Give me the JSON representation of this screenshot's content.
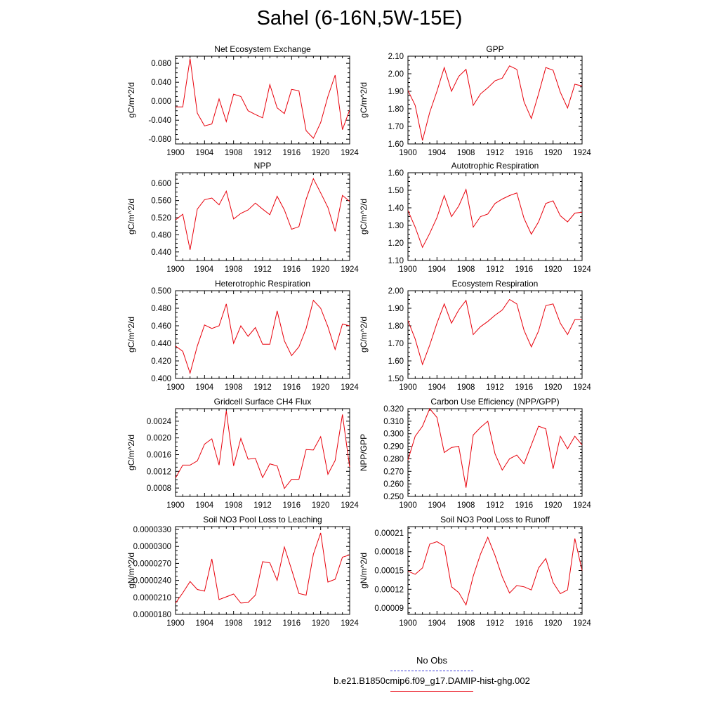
{
  "page": {
    "title": "Sahel (6-16N,5W-15E)"
  },
  "legend": {
    "items": [
      {
        "label": "No Obs",
        "color": "#3b3bd9",
        "style": "dashed"
      },
      {
        "label": "b.e21.B1850cmip6.f09_g17.DAMIP-hist-ghg.002",
        "color": "#e8000b",
        "style": "solid"
      }
    ]
  },
  "chart_data": [
    {
      "type": "line",
      "title": "Net Ecosystem Exchange",
      "ylabel": "gC/m^2/d",
      "xlim": [
        1900,
        1924
      ],
      "ylim": [
        -0.09,
        0.095
      ],
      "xticks": [
        "1900",
        "1904",
        "1908",
        "1912",
        "1916",
        "1920",
        "1924"
      ],
      "yticks": [
        "-0.080",
        "-0.040",
        "0.000",
        "0.040",
        "0.080"
      ],
      "x": [
        1900,
        1901,
        1902,
        1903,
        1904,
        1905,
        1906,
        1907,
        1908,
        1909,
        1910,
        1911,
        1912,
        1913,
        1914,
        1915,
        1916,
        1917,
        1918,
        1919,
        1920,
        1921,
        1922,
        1923,
        1924
      ],
      "series": [
        {
          "color": "#e8000b",
          "values": [
            -0.012,
            -0.012,
            0.09,
            -0.025,
            -0.052,
            -0.048,
            0.005,
            -0.043,
            0.015,
            0.01,
            -0.02,
            -0.028,
            -0.035,
            0.035,
            -0.014,
            -0.026,
            0.025,
            0.022,
            -0.062,
            -0.078,
            -0.045,
            0.01,
            0.055,
            -0.06,
            -0.018
          ]
        }
      ]
    },
    {
      "type": "line",
      "title": "GPP",
      "ylabel": "gC/m^2/d",
      "xlim": [
        1900,
        1924
      ],
      "ylim": [
        1.6,
        2.1
      ],
      "xticks": [
        "1900",
        "1904",
        "1908",
        "1912",
        "1916",
        "1920",
        "1924"
      ],
      "yticks": [
        "1.60",
        "1.70",
        "1.80",
        "1.90",
        "2.00",
        "2.10"
      ],
      "x": [
        1900,
        1901,
        1902,
        1903,
        1904,
        1905,
        1906,
        1907,
        1908,
        1909,
        1910,
        1911,
        1912,
        1913,
        1914,
        1915,
        1916,
        1917,
        1918,
        1919,
        1920,
        1921,
        1922,
        1923,
        1924
      ],
      "series": [
        {
          "color": "#e8000b",
          "values": [
            1.905,
            1.82,
            1.62,
            1.78,
            1.9,
            2.035,
            1.9,
            1.985,
            2.025,
            1.82,
            1.885,
            1.92,
            1.96,
            1.975,
            2.045,
            2.025,
            1.84,
            1.745,
            1.885,
            2.035,
            2.02,
            1.895,
            1.805,
            1.94,
            1.93
          ]
        }
      ]
    },
    {
      "type": "line",
      "title": "NPP",
      "ylabel": "gC/m^2/d",
      "xlim": [
        1900,
        1924
      ],
      "ylim": [
        0.42,
        0.625
      ],
      "xticks": [
        "1900",
        "1904",
        "1908",
        "1912",
        "1916",
        "1920",
        "1924"
      ],
      "yticks": [
        "0.440",
        "0.480",
        "0.520",
        "0.560",
        "0.600"
      ],
      "x": [
        1900,
        1901,
        1902,
        1903,
        1904,
        1905,
        1906,
        1907,
        1908,
        1909,
        1910,
        1911,
        1912,
        1913,
        1914,
        1915,
        1916,
        1917,
        1918,
        1919,
        1920,
        1921,
        1922,
        1923,
        1924
      ],
      "series": [
        {
          "color": "#e8000b",
          "values": [
            0.515,
            0.528,
            0.445,
            0.54,
            0.562,
            0.566,
            0.55,
            0.582,
            0.517,
            0.53,
            0.538,
            0.554,
            0.54,
            0.527,
            0.57,
            0.538,
            0.493,
            0.499,
            0.563,
            0.611,
            0.578,
            0.544,
            0.488,
            0.572,
            0.558
          ]
        }
      ]
    },
    {
      "type": "line",
      "title": "Autotrophic Respiration",
      "ylabel": "gC/m^2/d",
      "xlim": [
        1900,
        1924
      ],
      "ylim": [
        1.1,
        1.6
      ],
      "xticks": [
        "1900",
        "1904",
        "1908",
        "1912",
        "1916",
        "1920",
        "1924"
      ],
      "yticks": [
        "1.10",
        "1.20",
        "1.30",
        "1.40",
        "1.50",
        "1.60"
      ],
      "x": [
        1900,
        1901,
        1902,
        1903,
        1904,
        1905,
        1906,
        1907,
        1908,
        1909,
        1910,
        1911,
        1912,
        1913,
        1914,
        1915,
        1916,
        1917,
        1918,
        1919,
        1920,
        1921,
        1922,
        1923,
        1924
      ],
      "series": [
        {
          "color": "#e8000b",
          "values": [
            1.385,
            1.29,
            1.175,
            1.255,
            1.345,
            1.47,
            1.35,
            1.41,
            1.505,
            1.29,
            1.35,
            1.365,
            1.425,
            1.45,
            1.47,
            1.485,
            1.34,
            1.25,
            1.32,
            1.425,
            1.44,
            1.355,
            1.32,
            1.37,
            1.375
          ]
        }
      ]
    },
    {
      "type": "line",
      "title": "Heterotrophic Respiration",
      "ylabel": "gC/m^2/d",
      "xlim": [
        1900,
        1924
      ],
      "ylim": [
        0.4,
        0.5
      ],
      "xticks": [
        "1900",
        "1904",
        "1908",
        "1912",
        "1916",
        "1920",
        "1924"
      ],
      "yticks": [
        "0.400",
        "0.420",
        "0.440",
        "0.460",
        "0.480",
        "0.500"
      ],
      "x": [
        1900,
        1901,
        1902,
        1903,
        1904,
        1905,
        1906,
        1907,
        1908,
        1909,
        1910,
        1911,
        1912,
        1913,
        1914,
        1915,
        1916,
        1917,
        1918,
        1919,
        1920,
        1921,
        1922,
        1923,
        1924
      ],
      "series": [
        {
          "color": "#e8000b",
          "values": [
            0.437,
            0.431,
            0.406,
            0.437,
            0.461,
            0.457,
            0.46,
            0.485,
            0.44,
            0.46,
            0.448,
            0.458,
            0.439,
            0.439,
            0.477,
            0.443,
            0.426,
            0.436,
            0.457,
            0.489,
            0.48,
            0.459,
            0.433,
            0.462,
            0.46
          ]
        }
      ]
    },
    {
      "type": "line",
      "title": "Ecosystem Respiration",
      "ylabel": "gC/m^2/d",
      "xlim": [
        1900,
        1924
      ],
      "ylim": [
        1.5,
        2.0
      ],
      "xticks": [
        "1900",
        "1904",
        "1908",
        "1912",
        "1916",
        "1920",
        "1924"
      ],
      "yticks": [
        "1.50",
        "1.60",
        "1.70",
        "1.80",
        "1.90",
        "2.00"
      ],
      "x": [
        1900,
        1901,
        1902,
        1903,
        1904,
        1905,
        1906,
        1907,
        1908,
        1909,
        1910,
        1911,
        1912,
        1913,
        1914,
        1915,
        1916,
        1917,
        1918,
        1919,
        1920,
        1921,
        1922,
        1923,
        1924
      ],
      "series": [
        {
          "color": "#e8000b",
          "values": [
            1.83,
            1.725,
            1.58,
            1.69,
            1.815,
            1.925,
            1.815,
            1.89,
            1.945,
            1.75,
            1.795,
            1.825,
            1.86,
            1.89,
            1.95,
            1.925,
            1.775,
            1.68,
            1.77,
            1.915,
            1.925,
            1.815,
            1.75,
            1.835,
            1.835
          ]
        }
      ]
    },
    {
      "type": "line",
      "title": "Gridcell Surface CH4 Flux",
      "ylabel": "gC/m^2/d",
      "xlim": [
        1900,
        1924
      ],
      "ylim": [
        0.0006,
        0.0027
      ],
      "xticks": [
        "1900",
        "1904",
        "1908",
        "1912",
        "1916",
        "1920",
        "1924"
      ],
      "yticks": [
        "0.0008",
        "0.0012",
        "0.0016",
        "0.0020",
        "0.0024"
      ],
      "x": [
        1900,
        1901,
        1902,
        1903,
        1904,
        1905,
        1906,
        1907,
        1908,
        1909,
        1910,
        1911,
        1912,
        1913,
        1914,
        1915,
        1916,
        1917,
        1918,
        1919,
        1920,
        1921,
        1922,
        1923,
        1924
      ],
      "series": [
        {
          "color": "#e8000b",
          "values": [
            0.00104,
            0.00135,
            0.00135,
            0.00145,
            0.00185,
            0.00198,
            0.00135,
            0.00265,
            0.00133,
            0.00199,
            0.00149,
            0.00151,
            0.00105,
            0.00138,
            0.00133,
            0.00079,
            0.00101,
            0.00101,
            0.00172,
            0.00171,
            0.00203,
            0.00113,
            0.00146,
            0.00256,
            0.0013
          ]
        }
      ]
    },
    {
      "type": "line",
      "title": "Carbon Use Efficiency (NPP/GPP)",
      "ylabel": "NPP/GPP",
      "xlim": [
        1900,
        1924
      ],
      "ylim": [
        0.25,
        0.32
      ],
      "xticks": [
        "1900",
        "1904",
        "1908",
        "1912",
        "1916",
        "1920",
        "1924"
      ],
      "yticks": [
        "0.250",
        "0.260",
        "0.270",
        "0.280",
        "0.290",
        "0.300",
        "0.310",
        "0.320"
      ],
      "x": [
        1900,
        1901,
        1902,
        1903,
        1904,
        1905,
        1906,
        1907,
        1908,
        1909,
        1910,
        1911,
        1912,
        1913,
        1914,
        1915,
        1916,
        1917,
        1918,
        1919,
        1920,
        1921,
        1922,
        1923,
        1924
      ],
      "series": [
        {
          "color": "#e8000b",
          "values": [
            0.279,
            0.298,
            0.306,
            0.32,
            0.313,
            0.285,
            0.289,
            0.29,
            0.257,
            0.299,
            0.305,
            0.31,
            0.284,
            0.271,
            0.28,
            0.283,
            0.276,
            0.291,
            0.306,
            0.304,
            0.272,
            0.298,
            0.288,
            0.298,
            0.291
          ]
        }
      ]
    },
    {
      "type": "line",
      "title": "Soil NO3 Pool Loss to Leaching",
      "ylabel": "gN/m^2/d",
      "xlim": [
        1900,
        1924
      ],
      "ylim": [
        1.8e-05,
        3.35e-05
      ],
      "xticks": [
        "1900",
        "1904",
        "1908",
        "1912",
        "1916",
        "1920",
        "1924"
      ],
      "yticks": [
        "0.0000180",
        "0.0000210",
        "0.0000240",
        "0.0000270",
        "0.0000300",
        "0.0000330"
      ],
      "x": [
        1900,
        1901,
        1902,
        1903,
        1904,
        1905,
        1906,
        1907,
        1908,
        1909,
        1910,
        1911,
        1912,
        1913,
        1914,
        1915,
        1916,
        1917,
        1918,
        1919,
        1920,
        1921,
        1922,
        1923,
        1924
      ],
      "series": [
        {
          "color": "#e8000b",
          "values": [
            2e-05,
            2.18e-05,
            2.38e-05,
            2.24e-05,
            2.21e-05,
            2.78e-05,
            2.06e-05,
            2.11e-05,
            2.16e-05,
            2e-05,
            2.01e-05,
            2.14e-05,
            2.73e-05,
            2.71e-05,
            2.4e-05,
            2.99e-05,
            2.59e-05,
            2.17e-05,
            2.14e-05,
            2.86e-05,
            3.24e-05,
            2.37e-05,
            2.42e-05,
            2.81e-05,
            2.85e-05
          ]
        }
      ]
    },
    {
      "type": "line",
      "title": "Soil NO3 Pool Loss to Runoff",
      "ylabel": "gN/m^2/d",
      "xlim": [
        1900,
        1924
      ],
      "ylim": [
        8e-05,
        0.00022
      ],
      "xticks": [
        "1900",
        "1904",
        "1908",
        "1912",
        "1916",
        "1920",
        "1924"
      ],
      "yticks": [
        "0.00009",
        "0.00012",
        "0.00015",
        "0.00018",
        "0.00021"
      ],
      "x": [
        1900,
        1901,
        1902,
        1903,
        1904,
        1905,
        1906,
        1907,
        1908,
        1909,
        1910,
        1911,
        1912,
        1913,
        1914,
        1915,
        1916,
        1917,
        1918,
        1919,
        1920,
        1921,
        1922,
        1923,
        1924
      ],
      "series": [
        {
          "color": "#e8000b",
          "values": [
            0.000149,
            0.000144,
            0.000154,
            0.000192,
            0.000196,
            0.000189,
            0.000124,
            0.000115,
            9.5e-05,
            0.000141,
            0.000176,
            0.000203,
            0.000174,
            0.00014,
            0.000114,
            0.000126,
            0.000124,
            0.000119,
            0.000154,
            0.000169,
            0.000131,
            0.000113,
            0.000119,
            0.000201,
            0.00015
          ]
        }
      ]
    }
  ]
}
